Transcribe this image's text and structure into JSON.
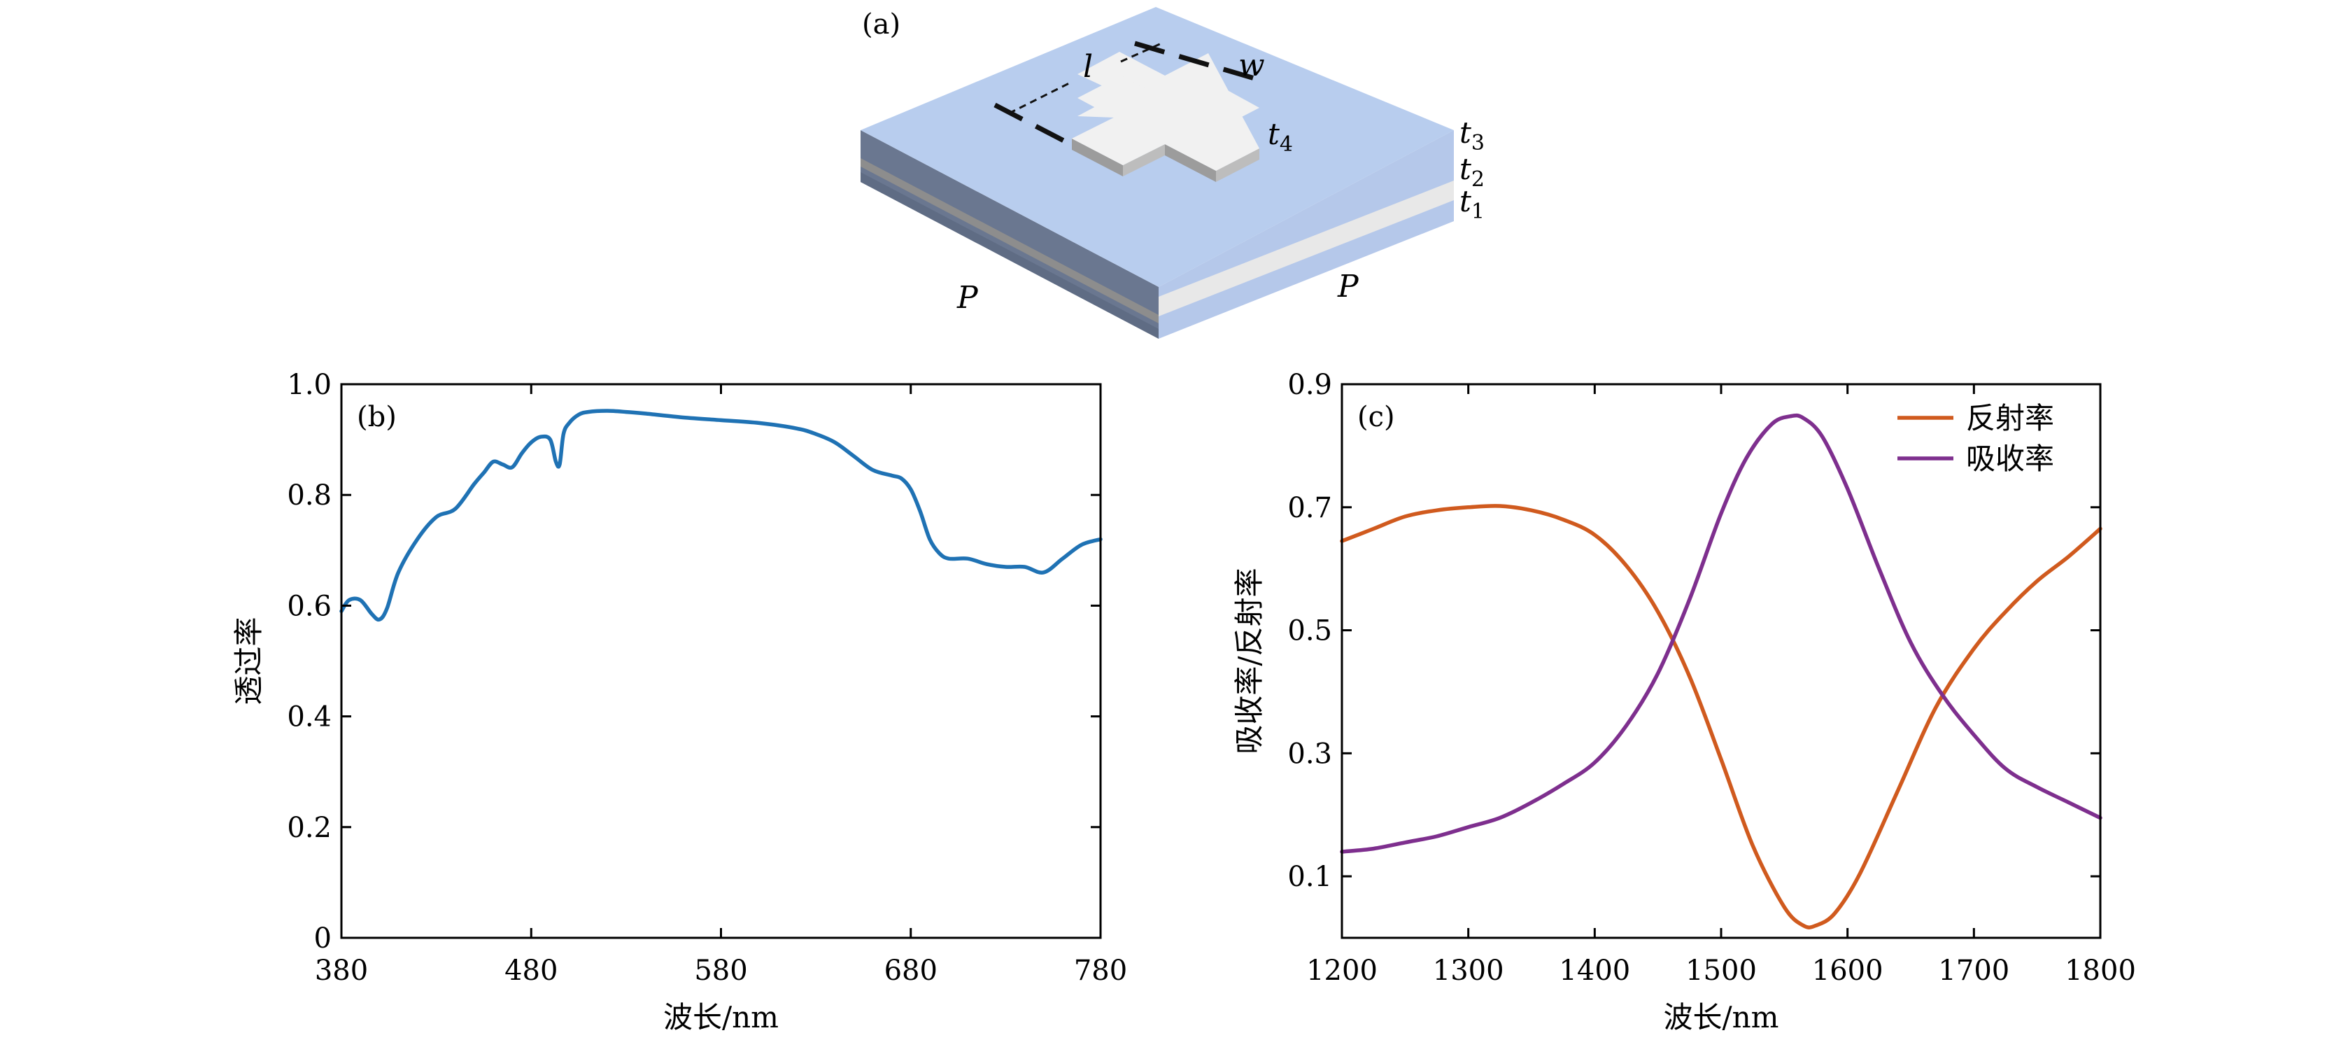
{
  "panel_a": {
    "label": "(a)",
    "dim_l": "l",
    "dim_w": "w",
    "t4": "t",
    "t4_sub": "4",
    "t3": "t",
    "t3_sub": "3",
    "t2": "t",
    "t2_sub": "2",
    "t1": "t",
    "t1_sub": "1",
    "p_left": "P",
    "p_right": "P",
    "colors": {
      "top": "#b8cdee",
      "left_dark": "#6a7790",
      "right_side": "#b5c8ea",
      "dielectric": "#e8e8e8",
      "metal_left": "#8d8d8d",
      "cross": "#f1f1f1"
    }
  },
  "chart_data": [
    {
      "type": "line",
      "panel_label": "(b)",
      "xlabel": "波长/nm",
      "ylabel": "透过率",
      "xlim": [
        380,
        780
      ],
      "ylim": [
        0,
        1.0
      ],
      "xticks": [
        380,
        480,
        580,
        680,
        780
      ],
      "yticks": [
        0,
        0.2,
        0.4,
        0.6,
        0.8,
        1.0
      ],
      "ytick_labels": [
        "0",
        "0.2",
        "0.4",
        "0.6",
        "0.8",
        "1.0"
      ],
      "series": [
        {
          "name": "透过率",
          "color": "#1f72b4",
          "x": [
            380,
            384,
            390,
            396,
            400,
            404,
            410,
            420,
            430,
            440,
            450,
            455,
            460,
            465,
            470,
            475,
            480,
            485,
            490,
            493,
            495,
            497,
            500,
            505,
            510,
            520,
            530,
            540,
            560,
            580,
            600,
            620,
            630,
            640,
            650,
            660,
            670,
            675,
            680,
            685,
            690,
            695,
            700,
            710,
            720,
            730,
            740,
            750,
            760,
            770,
            780
          ],
          "y": [
            0.59,
            0.61,
            0.61,
            0.585,
            0.575,
            0.595,
            0.66,
            0.72,
            0.76,
            0.775,
            0.82,
            0.84,
            0.86,
            0.855,
            0.85,
            0.875,
            0.895,
            0.905,
            0.9,
            0.86,
            0.855,
            0.91,
            0.93,
            0.945,
            0.95,
            0.952,
            0.95,
            0.947,
            0.94,
            0.935,
            0.93,
            0.92,
            0.91,
            0.895,
            0.87,
            0.845,
            0.835,
            0.83,
            0.81,
            0.77,
            0.72,
            0.695,
            0.685,
            0.685,
            0.675,
            0.67,
            0.67,
            0.66,
            0.685,
            0.71,
            0.72
          ]
        }
      ]
    },
    {
      "type": "line",
      "panel_label": "(c)",
      "xlabel": "波长/nm",
      "ylabel": "吸收率/反射率",
      "xlim": [
        1200,
        1800
      ],
      "ylim": [
        0,
        0.9
      ],
      "xticks": [
        1200,
        1300,
        1400,
        1500,
        1600,
        1700,
        1800
      ],
      "yticks": [
        0.1,
        0.3,
        0.5,
        0.7,
        0.9
      ],
      "ytick_labels": [
        "0.1",
        "0.3",
        "0.5",
        "0.7",
        "0.9"
      ],
      "legend_position": "top-right",
      "series": [
        {
          "name": "反射率",
          "color": "#d05a1e",
          "x": [
            1200,
            1225,
            1250,
            1275,
            1300,
            1325,
            1350,
            1375,
            1400,
            1425,
            1450,
            1475,
            1500,
            1525,
            1550,
            1565,
            1575,
            1590,
            1610,
            1640,
            1670,
            1700,
            1725,
            1750,
            1775,
            1800
          ],
          "y": [
            0.645,
            0.665,
            0.685,
            0.695,
            0.7,
            0.702,
            0.695,
            0.68,
            0.655,
            0.605,
            0.53,
            0.425,
            0.29,
            0.15,
            0.05,
            0.02,
            0.02,
            0.04,
            0.105,
            0.24,
            0.375,
            0.47,
            0.53,
            0.58,
            0.62,
            0.665
          ]
        },
        {
          "name": "吸收率",
          "color": "#7e2f8e",
          "x": [
            1200,
            1225,
            1250,
            1275,
            1300,
            1325,
            1350,
            1375,
            1400,
            1425,
            1450,
            1475,
            1500,
            1520,
            1540,
            1555,
            1565,
            1580,
            1600,
            1625,
            1650,
            1675,
            1700,
            1725,
            1750,
            1775,
            1800
          ],
          "y": [
            0.14,
            0.145,
            0.155,
            0.165,
            0.18,
            0.195,
            0.22,
            0.25,
            0.285,
            0.345,
            0.43,
            0.55,
            0.69,
            0.78,
            0.835,
            0.848,
            0.845,
            0.815,
            0.73,
            0.6,
            0.48,
            0.395,
            0.33,
            0.275,
            0.245,
            0.22,
            0.195
          ]
        }
      ]
    }
  ]
}
